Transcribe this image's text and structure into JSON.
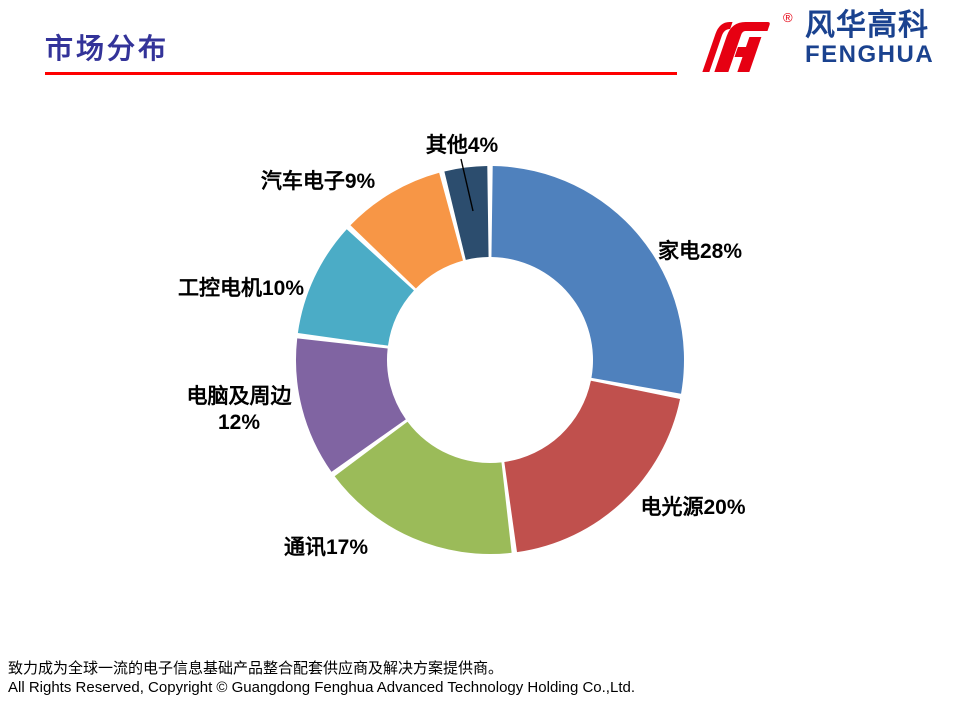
{
  "header": {
    "title": "市场分布",
    "underline_color": "#fe0000",
    "logo": {
      "brand_cn": "风华高科",
      "brand_en": "FENGHUA",
      "registered_mark": "®",
      "mark_color": "#e60012",
      "text_color": "#1a428f"
    }
  },
  "chart_data": {
    "type": "pie",
    "subtype": "donut",
    "title": "市场分布",
    "categories": [
      "家电",
      "电光源",
      "通讯",
      "电脑及周边",
      "工控电机",
      "汽车电子",
      "其他"
    ],
    "values": [
      28,
      20,
      17,
      12,
      10,
      9,
      4
    ],
    "unit": "%",
    "labels": [
      "家电28%",
      "电光源20%",
      "通讯17%",
      "电脑及周边\n12%",
      "工控电机10%",
      "汽车电子9%",
      "其他4%"
    ],
    "colors": [
      "#4f81bd",
      "#c0504d",
      "#9bbb59",
      "#8064a2",
      "#4bacc6",
      "#f79646",
      "#2c4d6e"
    ],
    "start_angle_deg": 0,
    "direction": "clockwise",
    "inner_radius_ratio": 0.53,
    "legend": "none",
    "data_labels": "outside",
    "label_color": "#000000"
  },
  "footer": {
    "line1": "致力成为全球一流的电子信息基础产品整合配套供应商及解决方案提供商。",
    "line2": "All Rights Reserved, Copyright © Guangdong Fenghua Advanced Technology Holding Co.,Ltd."
  }
}
